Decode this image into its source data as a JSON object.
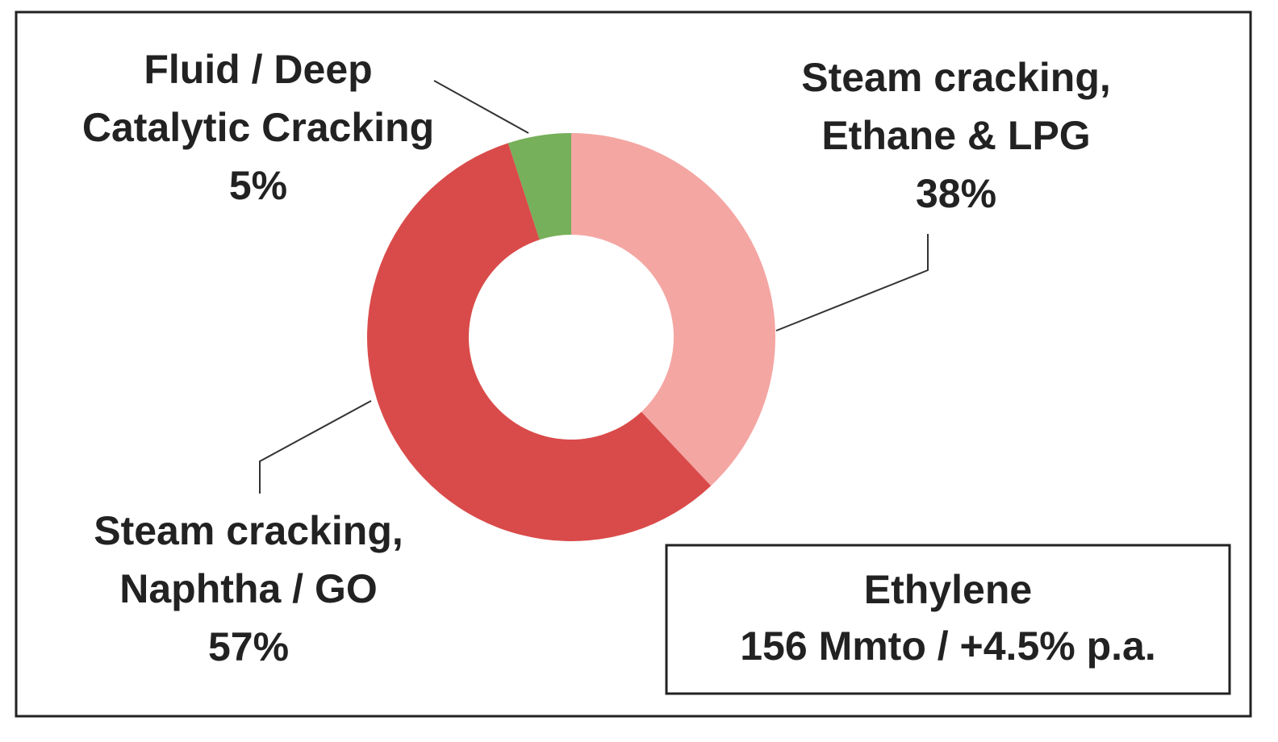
{
  "chart_data": {
    "type": "donut",
    "categories": [
      [
        "Steam cracking,",
        "Ethane & LPG"
      ],
      [
        "Steam cracking,",
        "Naphtha / GO"
      ],
      [
        "Fluid / Deep",
        "Catalytic Cracking"
      ]
    ],
    "values": [
      38,
      57,
      5
    ],
    "value_labels": [
      "38%",
      "57%",
      "5%"
    ],
    "colors": [
      "#f4a6a3",
      "#d94b4a",
      "#76b05a"
    ],
    "annotation": [
      "Ethylene",
      "156 Mmto / +4.5% p.a."
    ]
  }
}
